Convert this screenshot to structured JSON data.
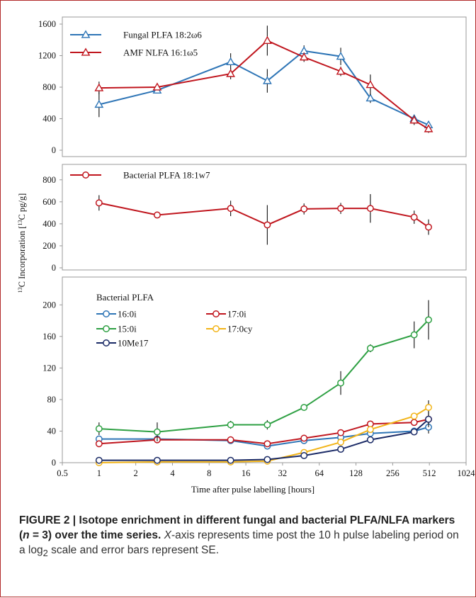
{
  "figure_label": "FIGURE 2 | ",
  "caption": {
    "bold_part1": "Isotope enrichment in different fungal and bacterial PLFA/NLFA markers (",
    "bold_n": "n",
    "bold_part2": " = 3) over the time series.",
    "x_word": "X",
    "rest_part1": "-axis represents time post the 10 h pulse labeling period on a log",
    "rest_sub": "2",
    "rest_part2": " scale and error bars represent SE."
  },
  "colors": {
    "red": "#c0161e",
    "blue": "#2e75b6",
    "green": "#2ea043",
    "orange": "#f2b418",
    "navy": "#1a2a66",
    "error": "#222222",
    "frame": "#9a9a9a"
  },
  "chart_data": [
    {
      "type": "line",
      "x_scale": "log2",
      "xlim": [
        0.5,
        1024
      ],
      "ylim": [
        0,
        1600
      ],
      "y_ticks": [
        "0",
        "400",
        "800",
        "1200",
        "1600"
      ],
      "legend_position": "top-left",
      "series": [
        {
          "name": "Fungal PLFA 18:2ω6",
          "color": "#2e75b6",
          "marker": "triangle",
          "x": [
            1,
            3,
            12,
            24,
            48,
            96,
            168,
            384,
            504
          ],
          "y": [
            580,
            760,
            1120,
            880,
            1260,
            1190,
            660,
            400,
            320
          ],
          "err": [
            160,
            30,
            110,
            150,
            70,
            110,
            60,
            40,
            40
          ]
        },
        {
          "name": "AMF NLFA 16:1ω5",
          "color": "#c0161e",
          "marker": "triangle",
          "x": [
            1,
            3,
            12,
            24,
            48,
            96,
            168,
            384,
            504
          ],
          "y": [
            790,
            800,
            970,
            1390,
            1180,
            1000,
            830,
            380,
            270
          ],
          "err": [
            80,
            30,
            70,
            190,
            60,
            60,
            130,
            60,
            50
          ]
        }
      ]
    },
    {
      "type": "line",
      "x_scale": "log2",
      "xlim": [
        0.5,
        1024
      ],
      "ylim": [
        0,
        850
      ],
      "y_ticks": [
        "0",
        "200",
        "400",
        "600",
        "800"
      ],
      "legend_position": "top-left",
      "series": [
        {
          "name": "Bacterial PLFA 18:1w7",
          "color": "#c0161e",
          "marker": "circle",
          "x": [
            1,
            3,
            12,
            24,
            48,
            96,
            168,
            384,
            504
          ],
          "y": [
            590,
            480,
            540,
            390,
            535,
            540,
            540,
            460,
            370
          ],
          "err": [
            70,
            30,
            70,
            180,
            50,
            50,
            130,
            60,
            70
          ]
        }
      ]
    },
    {
      "type": "line",
      "x_scale": "log2",
      "xlim": [
        0.5,
        1024
      ],
      "ylim": [
        0,
        220
      ],
      "y_ticks": [
        "0",
        "40",
        "80",
        "120",
        "160",
        "200"
      ],
      "x_ticks": [
        "0.5",
        "1",
        "2",
        "4",
        "8",
        "16",
        "32",
        "64",
        "128",
        "256",
        "512",
        "1024"
      ],
      "xlabel": "Time after pulse labelling [hours]",
      "legend_title": "Bacterial PLFA",
      "legend_position": "top-left",
      "series": [
        {
          "name": "16:0i",
          "color": "#2e75b6",
          "marker": "circle",
          "x": [
            1,
            3,
            12,
            24,
            48,
            96,
            168,
            384,
            504
          ],
          "y": [
            30,
            30,
            28,
            21,
            28,
            32,
            37,
            40,
            45
          ],
          "err": [
            3,
            3,
            2,
            3,
            3,
            3,
            3,
            3,
            8
          ]
        },
        {
          "name": "17:0i",
          "color": "#c0161e",
          "marker": "circle",
          "x": [
            1,
            3,
            12,
            24,
            48,
            96,
            168,
            384,
            504
          ],
          "y": [
            24,
            29,
            29,
            24,
            31,
            38,
            49,
            51,
            55
          ],
          "err": [
            3,
            3,
            2,
            3,
            2,
            3,
            3,
            4,
            6
          ]
        },
        {
          "name": "15:0i",
          "color": "#2ea043",
          "marker": "circle",
          "x": [
            1,
            3,
            12,
            24,
            48,
            96,
            168,
            384,
            504
          ],
          "y": [
            43,
            39,
            48,
            48,
            70,
            101,
            145,
            162,
            181
          ],
          "err": [
            8,
            12,
            5,
            6,
            3,
            15,
            5,
            17,
            25
          ]
        },
        {
          "name": "17:0cy",
          "color": "#f2b418",
          "marker": "circle",
          "x": [
            1,
            3,
            12,
            24,
            48,
            96,
            168,
            384,
            504
          ],
          "y": [
            0,
            1,
            1,
            2,
            13,
            26,
            42,
            59,
            70
          ],
          "err": [
            0,
            0,
            0,
            1,
            2,
            2,
            3,
            3,
            9
          ]
        },
        {
          "name": "10Me17",
          "color": "#1a2a66",
          "marker": "circle",
          "x": [
            1,
            3,
            12,
            24,
            48,
            96,
            168,
            384,
            504
          ],
          "y": [
            3,
            3,
            3,
            4,
            9,
            17,
            29,
            39,
            55
          ],
          "err": [
            1,
            1,
            1,
            1,
            1,
            2,
            2,
            3,
            10
          ]
        }
      ]
    }
  ],
  "shared_ylabel": {
    "sup1": "13",
    "part1": "C Incorporation [",
    "sup2": "13",
    "part2": "C pg/g]"
  }
}
